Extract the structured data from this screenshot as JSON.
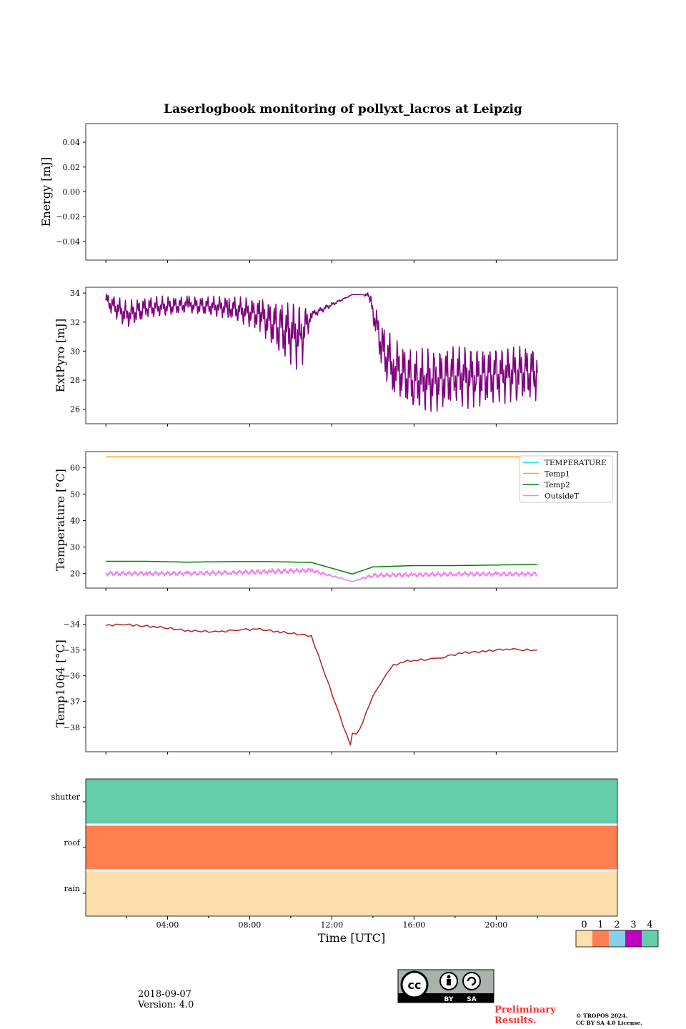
{
  "title": "Laserlogbook monitoring of pollyxt_lacros at Leipzig",
  "xlabel": "Time [UTC]",
  "xticks": [
    "04:00",
    "08:00",
    "12:00",
    "16:00",
    "20:00"
  ],
  "chart_data": [
    {
      "type": "line",
      "ylabel": "Energy [mJ]",
      "ylim": [
        -0.055,
        0.055
      ],
      "yticks": [
        -0.04,
        -0.02,
        0.0,
        0.02,
        0.04
      ],
      "ytick_labels": [
        "−0.04",
        "−0.02",
        "0.00",
        "0.02",
        "0.04"
      ],
      "series": []
    },
    {
      "type": "line",
      "ylabel": "ExtPyro [mJ]",
      "ylim": [
        25.0,
        34.4
      ],
      "yticks": [
        26,
        28,
        30,
        32,
        34
      ],
      "ytick_labels": [
        "26",
        "28",
        "30",
        "32",
        "34"
      ],
      "series": [
        {
          "color": "#800080",
          "hours": [
            1.0,
            2.0,
            3.0,
            5.0,
            7.0,
            8.5,
            9.5,
            10.5,
            11.0,
            13.0,
            13.5,
            13.8,
            14.5,
            15.0,
            16.0,
            17.0,
            18.0,
            19.0,
            20.0,
            21.0,
            22.0
          ],
          "values": [
            33.5,
            32.5,
            33.0,
            33.2,
            33.0,
            32.5,
            31.5,
            31.0,
            32.5,
            33.9,
            33.9,
            33.8,
            30.0,
            29.0,
            28.0,
            28.0,
            28.3,
            28.2,
            28.3,
            28.5,
            28.5
          ],
          "spread": [
            0.6,
            1.0,
            0.8,
            0.6,
            0.8,
            1.2,
            2.0,
            2.5,
            0.3,
            0.0,
            0.0,
            0.3,
            2.0,
            2.0,
            2.2,
            2.3,
            2.2,
            2.2,
            2.0,
            2.0,
            2.0
          ]
        }
      ]
    },
    {
      "type": "line",
      "ylabel": "Temperature [°C]",
      "ylim": [
        14.5,
        66.0
      ],
      "yticks": [
        20,
        30,
        40,
        50,
        60
      ],
      "ytick_labels": [
        "20",
        "30",
        "40",
        "50",
        "60"
      ],
      "legend_position": "upper-right",
      "series": [
        {
          "name": "TEMPERATURE",
          "color": "#00e5ee",
          "hours": [],
          "values": []
        },
        {
          "name": "Temp1",
          "color": "#ffa500",
          "hours": [
            1.0,
            22.0
          ],
          "values": [
            64.0,
            64.0
          ]
        },
        {
          "name": "Temp2",
          "color": "#008000",
          "hours": [
            1.0,
            3.0,
            5.0,
            7.0,
            9.0,
            11.0,
            13.0,
            14.0,
            16.0,
            18.0,
            20.0,
            22.0
          ],
          "values": [
            24.6,
            24.6,
            24.3,
            24.5,
            24.5,
            24.2,
            19.8,
            22.5,
            23.0,
            23.0,
            23.2,
            23.5
          ]
        },
        {
          "name": "OutsideT",
          "color": "#ee82ee",
          "hours": [
            1.0,
            3.0,
            5.0,
            7.0,
            9.0,
            11.0,
            13.0,
            14.0,
            16.0,
            18.0,
            20.0,
            22.0
          ],
          "values": [
            20.0,
            20.0,
            20.0,
            20.3,
            20.7,
            21.2,
            17.0,
            19.3,
            19.5,
            19.8,
            19.8,
            19.8
          ],
          "spread": [
            1.0,
            1.0,
            1.0,
            1.0,
            1.2,
            1.0,
            0.0,
            1.0,
            1.0,
            1.0,
            1.0,
            1.0
          ]
        }
      ]
    },
    {
      "type": "line",
      "ylabel": "Temp1064 [°C]",
      "ylim": [
        -38.95,
        -33.65
      ],
      "yticks": [
        -38,
        -37,
        -36,
        -35,
        -34
      ],
      "ytick_labels": [
        "−38",
        "−37",
        "−36",
        "−35",
        "−34"
      ],
      "series": [
        {
          "color": "#b22222",
          "hours": [
            1.0,
            1.8,
            2.5,
            3.5,
            5.0,
            6.5,
            7.5,
            8.5,
            9.5,
            11.0,
            12.9,
            13.0,
            13.2,
            13.5,
            13.8,
            14.0,
            14.5,
            15.0,
            15.5,
            16.0,
            17.0,
            17.5,
            18.5,
            19.5,
            20.5,
            21.0,
            22.0
          ],
          "values": [
            -34.05,
            -34.0,
            -34.05,
            -34.1,
            -34.25,
            -34.3,
            -34.2,
            -34.2,
            -34.3,
            -34.45,
            -38.7,
            -38.2,
            -38.3,
            -37.8,
            -37.2,
            -36.8,
            -36.1,
            -35.6,
            -35.45,
            -35.4,
            -35.35,
            -35.25,
            -35.1,
            -35.05,
            -34.95,
            -35.0,
            -35.0
          ]
        }
      ]
    },
    {
      "type": "heatmap",
      "rows": [
        "shutter",
        "roof",
        "rain"
      ],
      "row_values": [
        4,
        1,
        0
      ],
      "colorbar": {
        "ticks": [
          "0",
          "1",
          "2",
          "3",
          "4"
        ],
        "colors": [
          "#fddfae",
          "#ff7f50",
          "#87ceeb",
          "#c000c0",
          "#66cdaa"
        ]
      }
    }
  ],
  "footer": {
    "date": "2018-09-07",
    "version": "Version: 4.0",
    "license_badge": [
      "BY",
      "SA"
    ],
    "preliminary": "Preliminary Results.",
    "copyright": "© TROPOS 2024.",
    "license": "CC BY SA 4.0 License."
  }
}
